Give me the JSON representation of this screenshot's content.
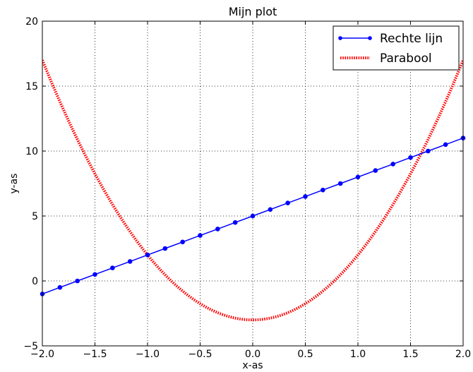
{
  "chart_data": {
    "type": "line",
    "title": "Mijn plot",
    "xlabel": "x-as",
    "ylabel": "y-as",
    "xlim": [
      -2.0,
      2.0
    ],
    "ylim": [
      -5,
      20
    ],
    "xticks": [
      -2.0,
      -1.5,
      -1.0,
      -0.5,
      0.0,
      0.5,
      1.0,
      1.5,
      2.0
    ],
    "xtick_labels": [
      "−2.0",
      "−1.5",
      "−1.0",
      "−0.5",
      "0.0",
      "0.5",
      "1.0",
      "1.5",
      "2.0"
    ],
    "yticks": [
      -5,
      0,
      5,
      10,
      15,
      20
    ],
    "ytick_labels": [
      "−5",
      "0",
      "5",
      "10",
      "15",
      "20"
    ],
    "grid": true,
    "legend_position": "top-right",
    "series": [
      {
        "name": "Rechte lijn",
        "style": "solid line with dot markers",
        "color": "#0000ff",
        "x": [
          -2.0,
          -1.8333,
          -1.6667,
          -1.5,
          -1.3333,
          -1.1667,
          -1.0,
          -0.8333,
          -0.6667,
          -0.5,
          -0.3333,
          -0.1667,
          0.0,
          0.1667,
          0.3333,
          0.5,
          0.6667,
          0.8333,
          1.0,
          1.1667,
          1.3333,
          1.5,
          1.6667,
          1.8333,
          2.0
        ],
        "y": [
          -1.0,
          -0.5,
          0.0,
          0.5,
          1.0,
          1.5,
          2.0,
          2.5,
          3.0,
          3.5,
          4.0,
          4.5,
          5.0,
          5.5,
          6.0,
          6.5,
          7.0,
          7.5,
          8.0,
          8.5,
          9.0,
          9.5,
          10.0,
          10.5,
          11.0
        ]
      },
      {
        "name": "Parabool",
        "style": "dotted line",
        "color": "#ff0000",
        "x": [
          -2.0,
          -1.75,
          -1.5,
          -1.25,
          -1.0,
          -0.75,
          -0.5,
          -0.25,
          0.0,
          0.25,
          0.5,
          0.75,
          1.0,
          1.25,
          1.5,
          1.75,
          2.0
        ],
        "y": [
          17.0,
          12.3125,
          8.25,
          4.8125,
          2.0,
          -0.1875,
          -1.75,
          -2.6875,
          -3.0,
          -2.6875,
          -1.75,
          -0.1875,
          2.0,
          4.8125,
          8.25,
          12.3125,
          17.0
        ]
      }
    ]
  }
}
